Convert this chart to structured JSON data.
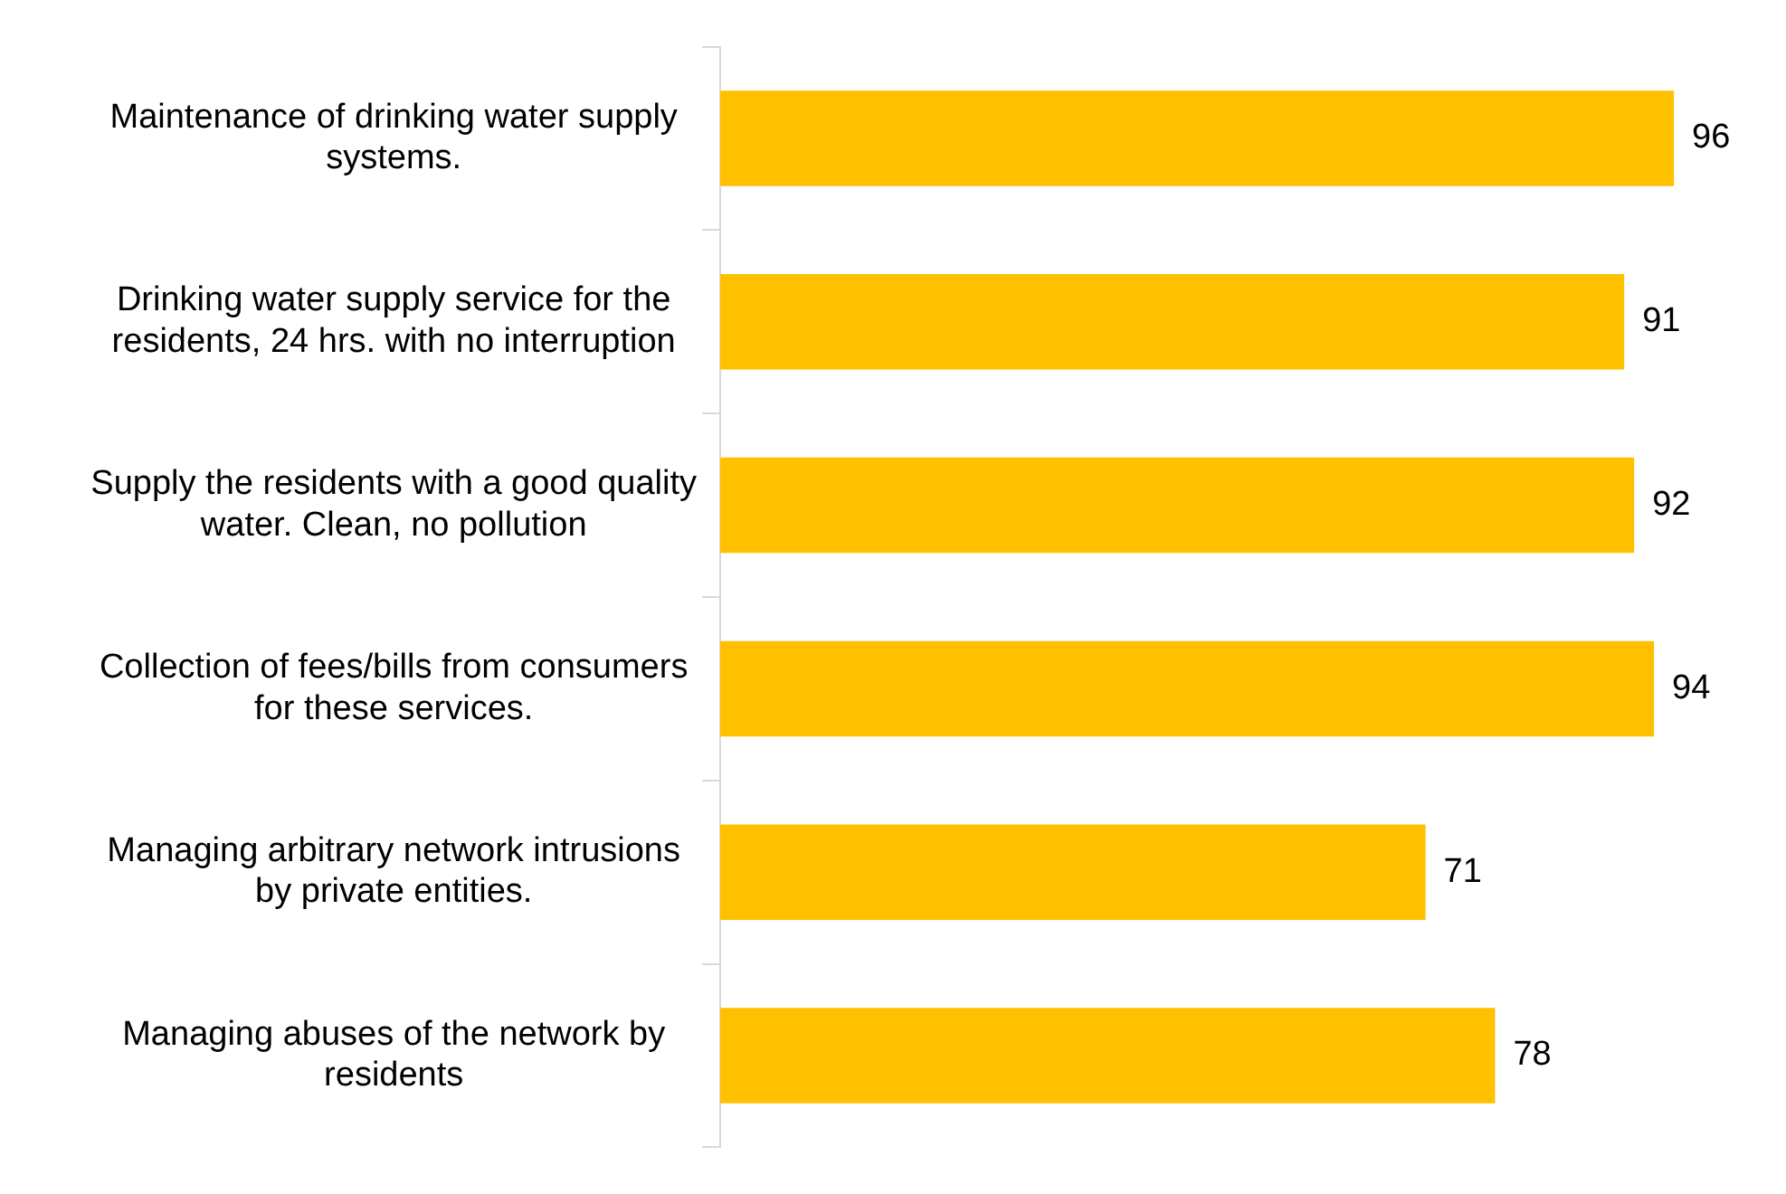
{
  "chart_data": {
    "type": "bar",
    "orientation": "horizontal",
    "categories": [
      "Maintenance of drinking water supply systems.",
      "Drinking water supply service for the residents, 24 hrs. with no interruption",
      "Supply the residents with a good quality water. Clean, no pollution",
      "Collection of fees/bills from consumers for these services.",
      "Managing arbitrary network intrusions by private entities.",
      "Managing abuses of the network by residents"
    ],
    "values": [
      96,
      91,
      92,
      94,
      71,
      78
    ],
    "color": "#ffc000",
    "data_labels": true,
    "tick_labels": "y"
  }
}
